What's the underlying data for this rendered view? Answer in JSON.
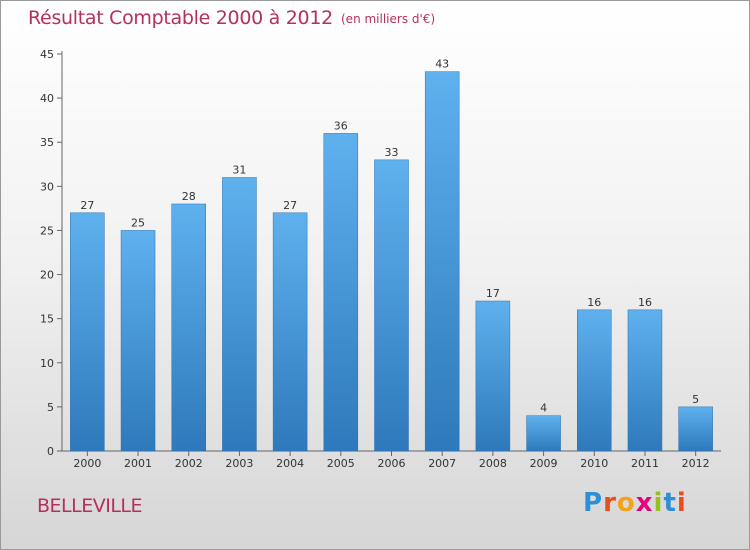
{
  "chart_data": {
    "type": "bar",
    "title": "Résultat Comptable 2000 à 2012",
    "unit": "(en milliers d'€)",
    "categories": [
      "2000",
      "2001",
      "2002",
      "2003",
      "2004",
      "2005",
      "2006",
      "2007",
      "2008",
      "2009",
      "2010",
      "2011",
      "2012"
    ],
    "values": [
      27,
      25,
      28,
      31,
      27,
      36,
      33,
      43,
      17,
      4,
      16,
      16,
      5
    ],
    "ylim": [
      0,
      45
    ],
    "yticks": [
      0,
      5,
      10,
      15,
      20,
      25,
      30,
      35,
      40,
      45
    ],
    "xlabel": "",
    "ylabel": "",
    "grid": false,
    "bar_color": "#3e8fd6"
  },
  "footer": {
    "commune": "BELLEVILLE",
    "brand": "Proxiti",
    "brand_letters": [
      {
        "char": "P",
        "color": "#2d8fd5"
      },
      {
        "char": "r",
        "color": "#e94e1b"
      },
      {
        "char": "o",
        "color": "#f5a21b"
      },
      {
        "char": "x",
        "color": "#e5007e"
      },
      {
        "char": "i",
        "color": "#95c11f"
      },
      {
        "char": "t",
        "color": "#2d8fd5"
      },
      {
        "char": "i",
        "color": "#e94e1b"
      }
    ]
  }
}
